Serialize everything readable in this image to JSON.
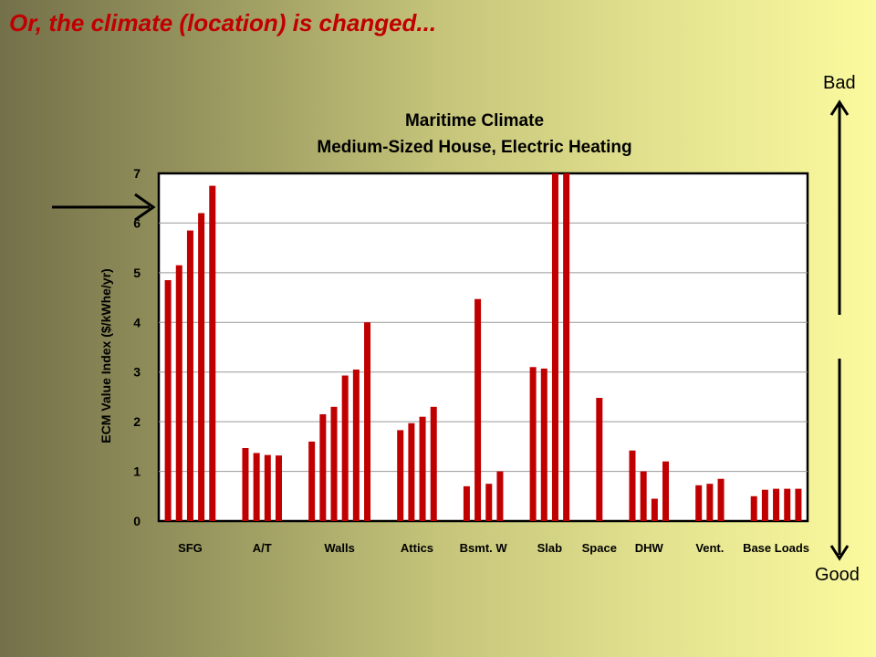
{
  "slide": {
    "title": "Or, the climate (location) is  changed...",
    "bad_label": "Bad",
    "good_label": "Good"
  },
  "colors": {
    "bar": "#c00000",
    "title": "#c00000",
    "plot_bg": "#ffffff",
    "grid": "#999999"
  },
  "icons": [
    "right-arrow-icon",
    "up-arrow-icon",
    "down-arrow-icon"
  ],
  "chart_data": {
    "type": "bar",
    "title": "Maritime Climate",
    "subtitle": "Medium-Sized House, Electric Heating",
    "xlabel": "",
    "ylabel": "ECM Value Index ($/kWhe/yr)",
    "ylim": [
      0,
      7
    ],
    "yticks": [
      0,
      1,
      2,
      3,
      4,
      5,
      6,
      7
    ],
    "grid": true,
    "legend": "none",
    "groups": [
      {
        "label": "SFG",
        "values": [
          4.85,
          5.15,
          5.85,
          6.2,
          6.75
        ]
      },
      {
        "label": "A/T",
        "values": [
          1.47,
          1.37,
          1.33,
          1.32
        ]
      },
      {
        "label": "Walls",
        "values": [
          1.6,
          2.15,
          2.3,
          2.93,
          3.05,
          4.0
        ]
      },
      {
        "label": "Attics",
        "values": [
          1.83,
          1.97,
          2.1,
          2.3
        ]
      },
      {
        "label": "Bsmt. W",
        "values": [
          0.7,
          4.47,
          0.75,
          1.0
        ]
      },
      {
        "label": "Slab",
        "values": [
          3.1,
          3.07,
          7.0,
          7.0
        ]
      },
      {
        "label": "Space",
        "values": [
          2.48
        ]
      },
      {
        "label": "DHW",
        "values": [
          1.42,
          1.0,
          0.45,
          1.2
        ]
      },
      {
        "label": "Vent.",
        "values": [
          0.72,
          0.75,
          0.85
        ]
      },
      {
        "label": "Base Loads",
        "values": [
          0.5,
          0.63,
          0.65,
          0.65,
          0.65
        ]
      }
    ]
  }
}
